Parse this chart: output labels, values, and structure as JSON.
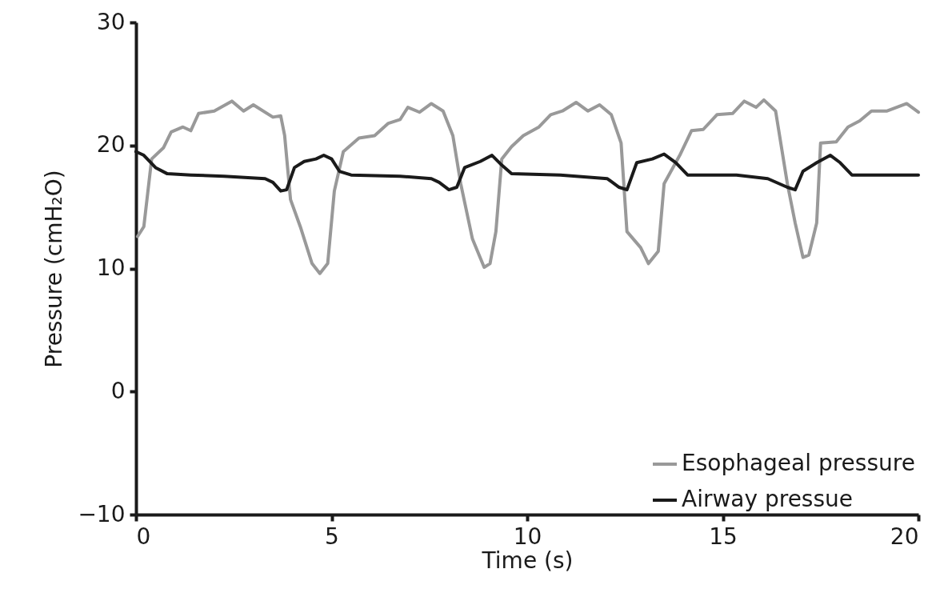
{
  "chart_data": {
    "type": "line",
    "xlabel": "Time (s)",
    "ylabel": "Pressure (cmH₂O)",
    "xlim": [
      0,
      20
    ],
    "xticks": [
      0,
      5,
      10,
      15,
      20
    ],
    "ylim": [
      -10,
      30
    ],
    "yticks": [
      -10,
      0,
      10,
      20,
      30
    ],
    "legend": "bottom right",
    "series": [
      {
        "name": "Esophageal pressure",
        "color": "#999999",
        "x": [
          0.04,
          0.2,
          0.4,
          0.7,
          0.9,
          1.2,
          1.4,
          1.6,
          2.0,
          2.45,
          2.75,
          3.0,
          3.5,
          3.7,
          3.8,
          3.95,
          4.2,
          4.5,
          4.7,
          4.9,
          5.07,
          5.3,
          5.7,
          6.1,
          6.45,
          6.75,
          6.95,
          7.25,
          7.55,
          7.85,
          8.1,
          8.3,
          8.6,
          8.9,
          9.05,
          9.2,
          9.35,
          9.6,
          9.9,
          10.3,
          10.6,
          10.9,
          11.25,
          11.55,
          11.85,
          12.15,
          12.4,
          12.55,
          12.9,
          13.1,
          13.35,
          13.5,
          13.9,
          14.2,
          14.5,
          14.85,
          15.25,
          15.55,
          15.85,
          16.05,
          16.35,
          16.65,
          16.85,
          17.05,
          17.2,
          17.4,
          17.5,
          17.9,
          18.2,
          18.5,
          18.8,
          19.2,
          19.7,
          20
        ],
        "values": [
          12.6,
          13.4,
          18.9,
          19.8,
          21.1,
          21.5,
          21.2,
          22.6,
          22.8,
          23.6,
          22.8,
          23.3,
          22.3,
          22.4,
          20.8,
          15.6,
          13.4,
          10.4,
          9.6,
          10.4,
          16.3,
          19.5,
          20.6,
          20.8,
          21.8,
          22.1,
          23.1,
          22.7,
          23.4,
          22.8,
          20.8,
          16.9,
          12.4,
          10.1,
          10.4,
          13.0,
          18.9,
          19.9,
          20.8,
          21.5,
          22.5,
          22.8,
          23.5,
          22.8,
          23.3,
          22.5,
          20.2,
          13.0,
          11.7,
          10.4,
          11.4,
          16.9,
          19.2,
          21.2,
          21.3,
          22.5,
          22.6,
          23.6,
          23.1,
          23.7,
          22.8,
          16.9,
          13.7,
          10.9,
          11.1,
          13.7,
          20.2,
          20.3,
          21.5,
          22.0,
          22.8,
          22.8,
          23.4,
          22.7
        ]
      },
      {
        "name": "Airway pressue",
        "color": "#1a1a1a",
        "x": [
          0,
          0.2,
          0.5,
          0.8,
          1.4,
          2.25,
          3.3,
          3.5,
          3.7,
          3.85,
          4.05,
          4.3,
          4.6,
          4.8,
          5.0,
          5.2,
          5.5,
          6.75,
          7.55,
          7.75,
          8.0,
          8.2,
          8.4,
          8.8,
          9.1,
          9.35,
          9.6,
          10.85,
          12.05,
          12.35,
          12.55,
          12.8,
          13.2,
          13.5,
          13.8,
          14.1,
          15.35,
          16.15,
          16.65,
          16.85,
          17.05,
          17.4,
          17.75,
          18.0,
          18.3,
          19.0,
          20
        ],
        "values": [
          19.5,
          19.2,
          18.2,
          17.7,
          17.6,
          17.5,
          17.3,
          17.0,
          16.3,
          16.4,
          18.2,
          18.7,
          18.9,
          19.2,
          18.9,
          17.9,
          17.6,
          17.5,
          17.3,
          17.0,
          16.4,
          16.6,
          18.2,
          18.7,
          19.2,
          18.4,
          17.7,
          17.6,
          17.3,
          16.6,
          16.4,
          18.6,
          18.9,
          19.3,
          18.6,
          17.6,
          17.6,
          17.3,
          16.6,
          16.4,
          17.9,
          18.6,
          19.2,
          18.6,
          17.6,
          17.6,
          17.6
        ]
      }
    ]
  }
}
